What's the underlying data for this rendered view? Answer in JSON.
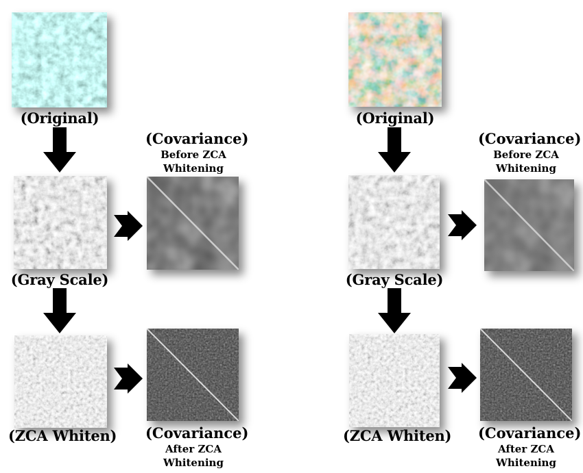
{
  "left": {
    "original_label": "(Original)",
    "gray_label": "(Gray Scale)",
    "zca_label": "(ZCA Whiten)",
    "cov_before_title": "(Covariance)",
    "cov_before_line1": "Before ZCA",
    "cov_before_line2": "Whitening",
    "cov_after_title": "(Covariance)",
    "cov_after_line1": "After ZCA",
    "cov_after_line2": "Whitening"
  },
  "right": {
    "original_label": "(Original)",
    "gray_label": "(Gray Scale)",
    "zca_label": "(ZCA Whiten)",
    "cov_before_title": "(Covariance)",
    "cov_before_line1": "Before ZCA",
    "cov_before_line2": "Whitening",
    "cov_after_title": "(Covariance)",
    "cov_after_line1": "After ZCA",
    "cov_after_line2": "Whitening"
  }
}
